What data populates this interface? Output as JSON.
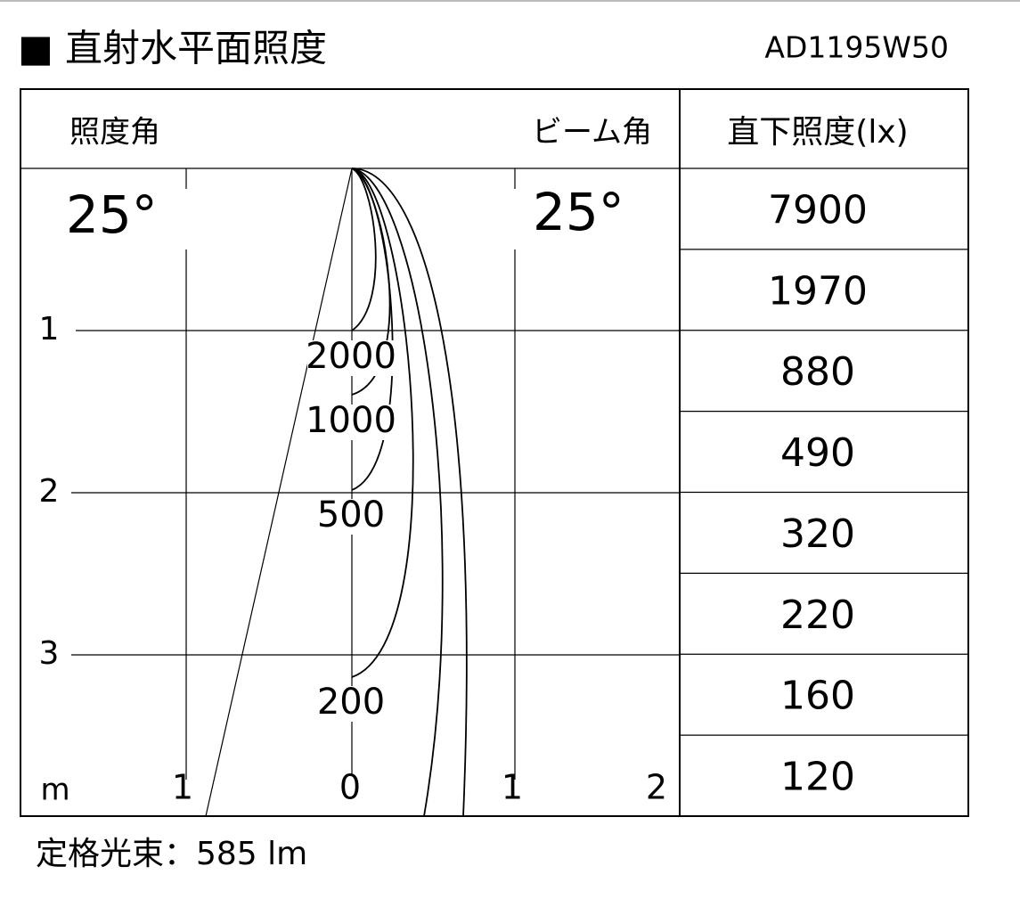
{
  "header": {
    "title": "■ 直射水平面照度",
    "model": "AD1195W50"
  },
  "diagram": {
    "left_heading": "照度角",
    "right_heading": "ビーム角",
    "illuminance_angle": "25°",
    "beam_angle": "25°",
    "depth_ticks": [
      "1",
      "2",
      "3"
    ],
    "distance_unit": "m",
    "width_ticks": [
      "1",
      "0",
      "1",
      "2"
    ],
    "curve_labels": [
      "2000",
      "1000",
      "500",
      "200"
    ]
  },
  "table": {
    "header": "直下照度(lx)",
    "rows": [
      "7900",
      "1970",
      "880",
      "490",
      "320",
      "220",
      "160",
      "120"
    ]
  },
  "footer": "定格光束：585 lm"
}
